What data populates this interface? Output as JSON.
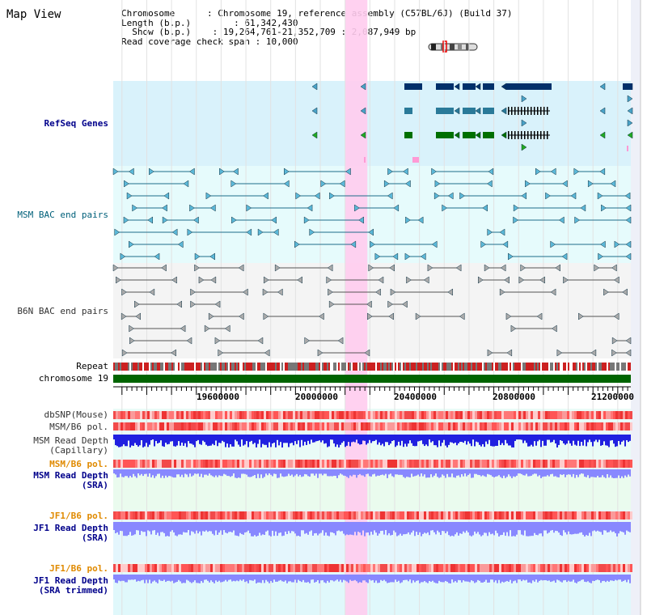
{
  "title": "Map View",
  "info": {
    "chromosome_key": "Chromosome",
    "chromosome_val": "Chromosome 19, reference assembly (C57BL/6J) (Build 37)",
    "length_key": "Length (b.p.)",
    "length_val": "61,342,430",
    "show_key": "Show (b.p.)",
    "show_val": "19,264,761-21,352,709 : 2,087,949 bp",
    "span_key": "Read coverage check span",
    "span_val": "10,000"
  },
  "tracks": {
    "refseq": "RefSeq Genes",
    "msm_bac": "MSM BAC end pairs",
    "b6n_bac": "B6N BAC end pairs",
    "repeat": "Repeat",
    "chromosome": "chromosome 19",
    "dbsnp": "dbSNP(Mouse)",
    "msm_b6_pol": "MSM/B6 pol.",
    "msm_depth_cap_1": "MSM Read Depth",
    "msm_depth_cap_2": "(Capillary)",
    "msm_b6_pol_2": "MSM/B6 pol.",
    "msm_depth_sra_1": "MSM Read Depth",
    "msm_depth_sra_2": "(SRA)",
    "jf1_b6_pol": "JF1/B6 pol.",
    "jf1_depth_sra_1": "JF1 Read Depth",
    "jf1_depth_sra_2": "(SRA)",
    "jf1_b6_pol_2": "JF1/B6 pol.",
    "jf1_depth_trim_1": "JF1 Read Depth",
    "jf1_depth_trim_2": "(SRA trimmed)"
  },
  "axis": {
    "ticks": [
      "19600000",
      "20000000",
      "20400000",
      "20800000",
      "21200000"
    ],
    "view_start": 19264761,
    "view_end": 21352709,
    "highlight_start": 20200000,
    "highlight_end": 20290000
  },
  "colors": {
    "gene_teal": "#2a7a99",
    "gene_green": "#007000",
    "gene_navy": "#00306a",
    "bac_teal": "#1d6d8a",
    "bac_gray": "#555555",
    "chromosome_bar": "#006400",
    "depth_blue": "#2020e0",
    "depth_light": "#8888ff",
    "highlight": "#ffccee"
  }
}
